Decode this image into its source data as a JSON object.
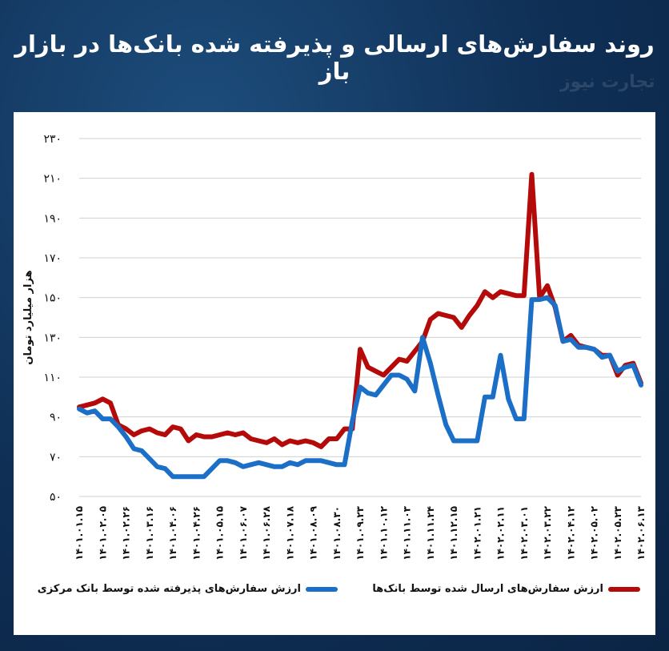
{
  "header": {
    "title": "روند سفارش‌های ارسالی و پذیرفته شده بانک‌ها در بازار باز",
    "watermark": "تجارت نیوز"
  },
  "colors": {
    "blue": "#1b6fc7",
    "red": "#b40a0a",
    "grid": "#d0d0d0"
  },
  "chart_data": {
    "type": "line",
    "ylabel": "هزار میلیارد تومان",
    "ylim": [
      50,
      230
    ],
    "yticks": [
      "۵۰",
      "۷۰",
      "۹۰",
      "۱۱۰",
      "۱۳۰",
      "۱۵۰",
      "۱۷۰",
      "۱۹۰",
      "۲۱۰",
      "۲۳۰"
    ],
    "ytick_values": [
      50,
      70,
      90,
      110,
      130,
      150,
      170,
      190,
      210,
      230
    ],
    "x_labels": [
      "۱۴۰۱.۰۱.۱۵",
      "۱۴۰۱.۰۲.۰۵",
      "۱۴۰۱.۰۲.۲۶",
      "۱۴۰۱.۰۳.۱۶",
      "۱۴۰۱.۰۴.۰۶",
      "۱۴۰۱.۰۴.۲۶",
      "۱۴۰۱.۰۵.۱۵",
      "۱۴۰۱.۰۶.۰۷",
      "۱۴۰۱.۰۶.۲۸",
      "۱۴۰۱.۰۷.۱۸",
      "۱۴۰۱.۰۸.۰۹",
      "۱۴۰۱.۰۸.۳۰",
      "۱۴۰۱.۰۹.۲۳",
      "۱۴۰۱.۱۰.۱۲",
      "۱۴۰۱.۱۱.۰۳",
      "۱۴۰۱.۱۱.۲۴",
      "۱۴۰۱.۱۲.۱۵",
      "۱۴۰۲.۰۱.۲۱",
      "۱۴۰۲.۰۲.۱۱",
      "۱۴۰۲.۰۳.۰۱",
      "۱۴۰۲.۰۳.۲۲",
      "۱۴۰۲.۰۴.۱۲",
      "۱۴۰۲.۰۵.۰۲",
      "۱۴۰۲.۰۵.۲۳",
      "۱۴۰۲.۰۶.۱۳"
    ],
    "series": [
      {
        "name": "ارزش سفارش‌های ارسال شده توسط بانک‌ها",
        "color": "#b40a0a",
        "values": [
          95,
          96,
          97,
          99,
          97,
          86,
          84,
          81,
          83,
          84,
          82,
          81,
          85,
          84,
          78,
          81,
          80,
          80,
          81,
          82,
          81,
          82,
          79,
          78,
          77,
          79,
          76,
          78,
          77,
          78,
          77,
          75,
          79,
          79,
          84,
          84,
          124,
          115,
          113,
          111,
          115,
          119,
          118,
          123,
          128,
          139,
          142,
          141,
          140,
          135,
          141,
          146,
          153,
          150,
          153,
          152,
          151,
          151,
          212,
          150,
          156,
          145,
          128,
          131,
          126,
          125,
          124,
          121,
          121,
          111,
          116,
          117,
          107
        ]
      },
      {
        "name": "ارزش سفارش‌های پذیرفته شده توسط بانک مرکزی",
        "color": "#1b6fc7",
        "values": [
          94,
          92,
          93,
          89,
          89,
          85,
          80,
          74,
          73,
          69,
          65,
          64,
          60,
          60,
          60,
          60,
          60,
          64,
          68,
          68,
          67,
          65,
          66,
          67,
          66,
          65,
          65,
          67,
          66,
          68,
          68,
          68,
          67,
          66,
          66,
          88,
          105,
          102,
          101,
          106,
          111,
          111,
          109,
          103,
          130,
          117,
          101,
          86,
          78,
          78,
          78,
          78,
          100,
          100,
          121,
          99,
          89,
          89,
          149,
          149,
          150,
          146,
          128,
          129,
          125,
          125,
          124,
          120,
          121,
          113,
          115,
          116,
          106
        ]
      }
    ]
  }
}
